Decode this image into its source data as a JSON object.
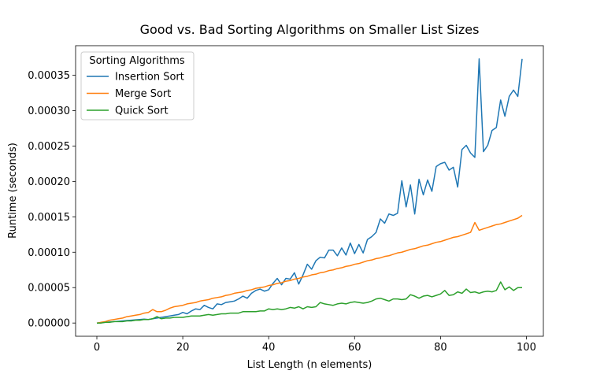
{
  "chart_data": {
    "type": "line",
    "title": "Good vs. Bad Sorting Algorithms on Smaller List Sizes",
    "xlabel": "List Length (n elements)",
    "ylabel": "Runtime (seconds)",
    "legend_title": "Sorting Algorithms",
    "legend_loc": "upper left",
    "grid": false,
    "x": [
      0,
      1,
      2,
      3,
      4,
      5,
      6,
      7,
      8,
      9,
      10,
      11,
      12,
      13,
      14,
      15,
      16,
      17,
      18,
      19,
      20,
      21,
      22,
      23,
      24,
      25,
      26,
      27,
      28,
      29,
      30,
      31,
      32,
      33,
      34,
      35,
      36,
      37,
      38,
      39,
      40,
      41,
      42,
      43,
      44,
      45,
      46,
      47,
      48,
      49,
      50,
      51,
      52,
      53,
      54,
      55,
      56,
      57,
      58,
      59,
      60,
      61,
      62,
      63,
      64,
      65,
      66,
      67,
      68,
      69,
      70,
      71,
      72,
      73,
      74,
      75,
      76,
      77,
      78,
      79,
      80,
      81,
      82,
      83,
      84,
      85,
      86,
      87,
      88,
      89,
      90,
      91,
      92,
      93,
      94,
      95,
      96,
      97,
      98,
      99
    ],
    "xlim": [
      -4.95,
      103.95
    ],
    "xticks": [
      0,
      20,
      40,
      60,
      80,
      100
    ],
    "ylim": [
      -1.87e-05,
      0.0003917
    ],
    "yticks": [
      {
        "value": 0,
        "label": "0.00000"
      },
      {
        "value": 5e-05,
        "label": "0.00005"
      },
      {
        "value": 0.0001,
        "label": "0.00010"
      },
      {
        "value": 0.00015,
        "label": "0.00015"
      },
      {
        "value": 0.0002,
        "label": "0.00020"
      },
      {
        "value": 0.00025,
        "label": "0.00025"
      },
      {
        "value": 0.0003,
        "label": "0.00030"
      },
      {
        "value": 0.00035,
        "label": "0.00035"
      }
    ],
    "series": [
      {
        "name": "Insertion Sort",
        "color": "#1f77b4",
        "values": [
          0,
          5e-07,
          1e-06,
          1.5e-06,
          2e-06,
          2.5e-06,
          3e-06,
          3.5e-06,
          4e-06,
          4.5e-06,
          5e-06,
          5.5e-06,
          5e-06,
          6e-06,
          7e-06,
          8e-06,
          9e-06,
          1e-05,
          1.1e-05,
          1.2e-05,
          1.5e-05,
          1.3e-05,
          1.7e-05,
          2e-05,
          1.9e-05,
          2.5e-05,
          2.2e-05,
          2e-05,
          2.7e-05,
          2.6e-05,
          2.9e-05,
          3e-05,
          3.1e-05,
          3.4e-05,
          3.8e-05,
          3.5e-05,
          4.2e-05,
          4.6e-05,
          4.8e-05,
          4.5e-05,
          4.7e-05,
          5.6e-05,
          6.3e-05,
          5.4e-05,
          6.3e-05,
          6.2e-05,
          7.1e-05,
          5.5e-05,
          6.8e-05,
          8.3e-05,
          7.6e-05,
          8.8e-05,
          9.3e-05,
          9.2e-05,
          0.000103,
          0.000103,
          9.5e-05,
          0.000106,
          9.6e-05,
          0.000113,
          9.8e-05,
          0.000111,
          9.9e-05,
          0.000118,
          0.000122,
          0.000128,
          0.000147,
          0.000141,
          0.000154,
          0.000152,
          0.000155,
          0.000201,
          0.000164,
          0.000195,
          0.000154,
          0.000203,
          0.000181,
          0.000202,
          0.000186,
          0.000221,
          0.000225,
          0.000227,
          0.000216,
          0.00022,
          0.000192,
          0.000245,
          0.000251,
          0.00024,
          0.000234,
          0.000373,
          0.000242,
          0.000251,
          0.000272,
          0.000276,
          0.000315,
          0.000292,
          0.00032,
          0.000329,
          0.00032,
          0.000373
        ]
      },
      {
        "name": "Merge Sort",
        "color": "#ff7f0e",
        "values": [
          0,
          1e-06,
          2e-06,
          4e-06,
          5e-06,
          6e-06,
          7e-06,
          9e-06,
          1e-05,
          1.1e-05,
          1.2e-05,
          1.4e-05,
          1.5e-05,
          1.9e-05,
          1.6e-05,
          1.6e-05,
          1.8e-05,
          2.1e-05,
          2.3e-05,
          2.4e-05,
          2.5e-05,
          2.7e-05,
          2.8e-05,
          2.9e-05,
          3.1e-05,
          3.2e-05,
          3.3e-05,
          3.5e-05,
          3.6e-05,
          3.7e-05,
          3.9e-05,
          4e-05,
          4.2e-05,
          4.3e-05,
          4.4e-05,
          4.6e-05,
          4.7e-05,
          4.9e-05,
          5e-05,
          5.1e-05,
          5.3e-05,
          5.4e-05,
          5.6e-05,
          5.7e-05,
          5.9e-05,
          6e-05,
          6.2e-05,
          6.3e-05,
          6.5e-05,
          6.6e-05,
          6.8e-05,
          6.9e-05,
          7.1e-05,
          7.2e-05,
          7.4e-05,
          7.5e-05,
          7.7e-05,
          7.8e-05,
          8e-05,
          8.1e-05,
          8.3e-05,
          8.4e-05,
          8.6e-05,
          8.8e-05,
          8.9e-05,
          9.1e-05,
          9.2e-05,
          9.4e-05,
          9.5e-05,
          9.7e-05,
          9.9e-05,
          0.0001,
          0.000102,
          0.000104,
          0.000105,
          0.000107,
          0.000109,
          0.00011,
          0.000112,
          0.000114,
          0.000115,
          0.000117,
          0.000119,
          0.000121,
          0.000122,
          0.000124,
          0.000126,
          0.000128,
          0.000142,
          0.000131,
          0.000133,
          0.000135,
          0.000137,
          0.000139,
          0.00014,
          0.000142,
          0.000144,
          0.000146,
          0.000148,
          0.000152
        ]
      },
      {
        "name": "Quick Sort",
        "color": "#2ca02c",
        "values": [
          0,
          0,
          1e-06,
          1e-06,
          2e-06,
          2e-06,
          2e-06,
          3e-06,
          3e-06,
          4e-06,
          4e-06,
          5e-06,
          5e-06,
          6e-06,
          9e-06,
          6e-06,
          7e-06,
          7e-06,
          8e-06,
          8e-06,
          8e-06,
          9e-06,
          1e-05,
          1e-05,
          1e-05,
          1.1e-05,
          1.2e-05,
          1.1e-05,
          1.2e-05,
          1.3e-05,
          1.3e-05,
          1.4e-05,
          1.4e-05,
          1.4e-05,
          1.6e-05,
          1.6e-05,
          1.6e-05,
          1.6e-05,
          1.7e-05,
          1.7e-05,
          2e-05,
          1.9e-05,
          2e-05,
          1.9e-05,
          2e-05,
          2.2e-05,
          2.1e-05,
          2.3e-05,
          2e-05,
          2.3e-05,
          2.2e-05,
          2.3e-05,
          2.9e-05,
          2.7e-05,
          2.6e-05,
          2.5e-05,
          2.7e-05,
          2.8e-05,
          2.7e-05,
          2.9e-05,
          3e-05,
          2.9e-05,
          2.8e-05,
          2.9e-05,
          3.1e-05,
          3.4e-05,
          3.5e-05,
          3.3e-05,
          3.1e-05,
          3.4e-05,
          3.4e-05,
          3.3e-05,
          3.4e-05,
          4e-05,
          3.8e-05,
          3.5e-05,
          3.8e-05,
          3.9e-05,
          3.7e-05,
          3.9e-05,
          4.1e-05,
          4.6e-05,
          3.9e-05,
          4e-05,
          4.4e-05,
          4.2e-05,
          4.8e-05,
          4.3e-05,
          4.4e-05,
          4.2e-05,
          4.4e-05,
          4.5e-05,
          4.4e-05,
          4.6e-05,
          5.8e-05,
          4.7e-05,
          5.1e-05,
          4.6e-05,
          5e-05,
          5e-05
        ]
      }
    ]
  }
}
